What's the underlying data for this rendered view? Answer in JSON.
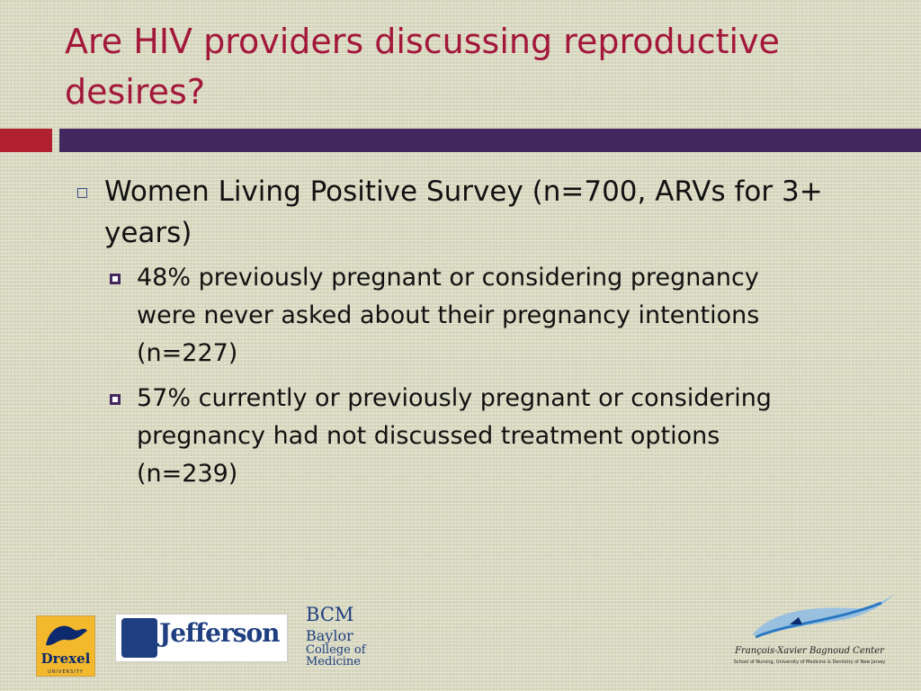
{
  "slide": {
    "title": "Are HIV providers discussing reproductive desires?",
    "colors": {
      "title": "#a3173a",
      "bar_red": "#b0202f",
      "bar_purple": "#43285f",
      "background": "#d9d9c1"
    },
    "bullets": [
      {
        "text": "Women Living Positive Survey (n=700, ARVs for 3+ years)",
        "sub": [
          "48% previously pregnant or considering pregnancy were never asked about their pregnancy intentions (n=227)",
          "57% currently or previously pregnant or considering pregnancy had not discussed treatment options (n=239)"
        ]
      }
    ]
  },
  "logos": {
    "drexel": {
      "name": "Drexel",
      "sub": "UNIVERSITY"
    },
    "jefferson": {
      "name": "Jefferson"
    },
    "bcm": {
      "abbr": "BCM",
      "line1": "Baylor",
      "line2": "College of",
      "line3": "Medicine"
    },
    "fxb": {
      "name": "François-Xavier Bagnoud Center",
      "sub": "School of Nursing, University of Medicine & Dentistry of New Jersey"
    }
  }
}
